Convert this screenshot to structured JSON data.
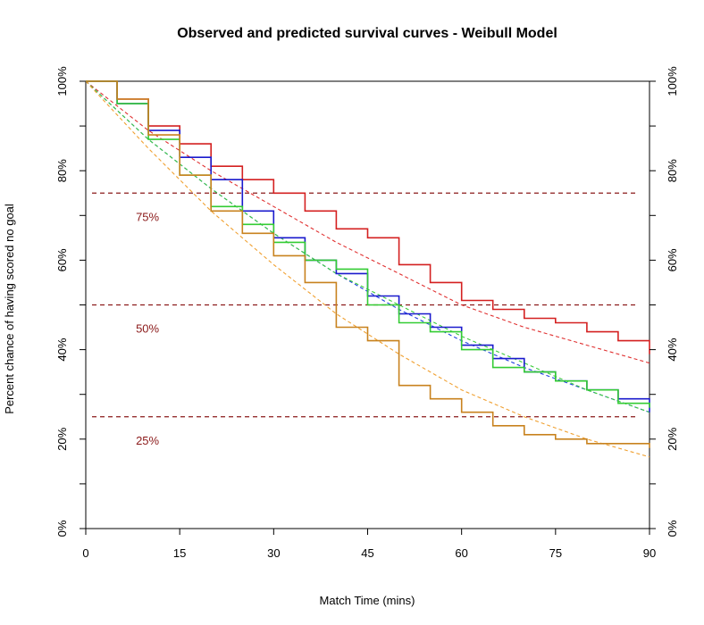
{
  "chart_data": {
    "type": "line",
    "title": "Observed and predicted survival curves - Weibull Model",
    "xlabel": "Match Time (mins)",
    "ylabel": "Percent chance of having scored no goal",
    "xlim": [
      0,
      90
    ],
    "ylim": [
      0,
      100
    ],
    "x_ticks": [
      "0",
      "15",
      "30",
      "45",
      "60",
      "75",
      "90"
    ],
    "y_ticks": [
      "0%",
      "20%",
      "40%",
      "60%",
      "80%",
      "100%"
    ],
    "grid": false,
    "legend": "none",
    "reference_lines": [
      {
        "y": 75,
        "label": "75%",
        "color": "#8b1a1a"
      },
      {
        "y": 50,
        "label": "50%",
        "color": "#8b1a1a"
      },
      {
        "y": 25,
        "label": "25%",
        "color": "#8b1a1a"
      }
    ],
    "series": [
      {
        "color": "#d42020",
        "style": "step",
        "x": [
          0,
          5,
          10,
          15,
          20,
          25,
          30,
          35,
          40,
          45,
          50,
          55,
          60,
          65,
          70,
          75,
          80,
          85,
          90
        ],
        "y": [
          100,
          96,
          90,
          86,
          81,
          78,
          75,
          71,
          67,
          65,
          59,
          55,
          51,
          49,
          47,
          46,
          44,
          42,
          39
        ]
      },
      {
        "color": "#1a1acd",
        "style": "step",
        "x": [
          0,
          5,
          10,
          15,
          20,
          25,
          30,
          35,
          40,
          45,
          50,
          55,
          60,
          65,
          70,
          75,
          80,
          85,
          90
        ],
        "y": [
          100,
          95,
          89,
          83,
          78,
          71,
          65,
          60,
          57,
          52,
          48,
          45,
          41,
          38,
          35,
          33,
          31,
          29,
          26
        ]
      },
      {
        "color": "#33cc33",
        "style": "step",
        "x": [
          0,
          5,
          10,
          15,
          20,
          25,
          30,
          35,
          40,
          45,
          50,
          55,
          60,
          65,
          70,
          75,
          80,
          85,
          90
        ],
        "y": [
          100,
          95,
          87,
          79,
          72,
          68,
          64,
          60,
          58,
          50,
          46,
          44,
          40,
          36,
          35,
          33,
          31,
          28,
          27
        ]
      },
      {
        "color": "#c8821e",
        "style": "step",
        "x": [
          0,
          5,
          10,
          15,
          20,
          25,
          30,
          35,
          40,
          45,
          50,
          55,
          60,
          65,
          70,
          75,
          80,
          85,
          90
        ],
        "y": [
          100,
          96,
          88,
          79,
          71,
          66,
          61,
          55,
          45,
          42,
          32,
          29,
          26,
          23,
          21,
          20,
          19,
          19,
          18
        ]
      },
      {
        "color": "#e03030",
        "style": "dashed",
        "x": [
          0,
          10,
          20,
          30,
          40,
          50,
          60,
          70,
          80,
          90
        ],
        "y": [
          100,
          89,
          80,
          72,
          64,
          57,
          50,
          45,
          41,
          37
        ]
      },
      {
        "color": "#2040e0",
        "style": "dashed",
        "x": [
          0,
          10,
          20,
          30,
          40,
          50,
          60,
          70,
          80,
          90
        ],
        "y": [
          100,
          87,
          76,
          66,
          57,
          49,
          42,
          36,
          31,
          26
        ]
      },
      {
        "color": "#3ccc3c",
        "style": "dashed",
        "x": [
          0,
          10,
          20,
          30,
          40,
          50,
          60,
          70,
          80,
          90
        ],
        "y": [
          100,
          87,
          76,
          66,
          57,
          50,
          43,
          37,
          31,
          26
        ]
      },
      {
        "color": "#f0a030",
        "style": "dashed",
        "x": [
          0,
          10,
          20,
          30,
          40,
          50,
          60,
          70,
          80,
          90
        ],
        "y": [
          100,
          85,
          71,
          59,
          48,
          39,
          31,
          25,
          20,
          16
        ]
      }
    ]
  }
}
